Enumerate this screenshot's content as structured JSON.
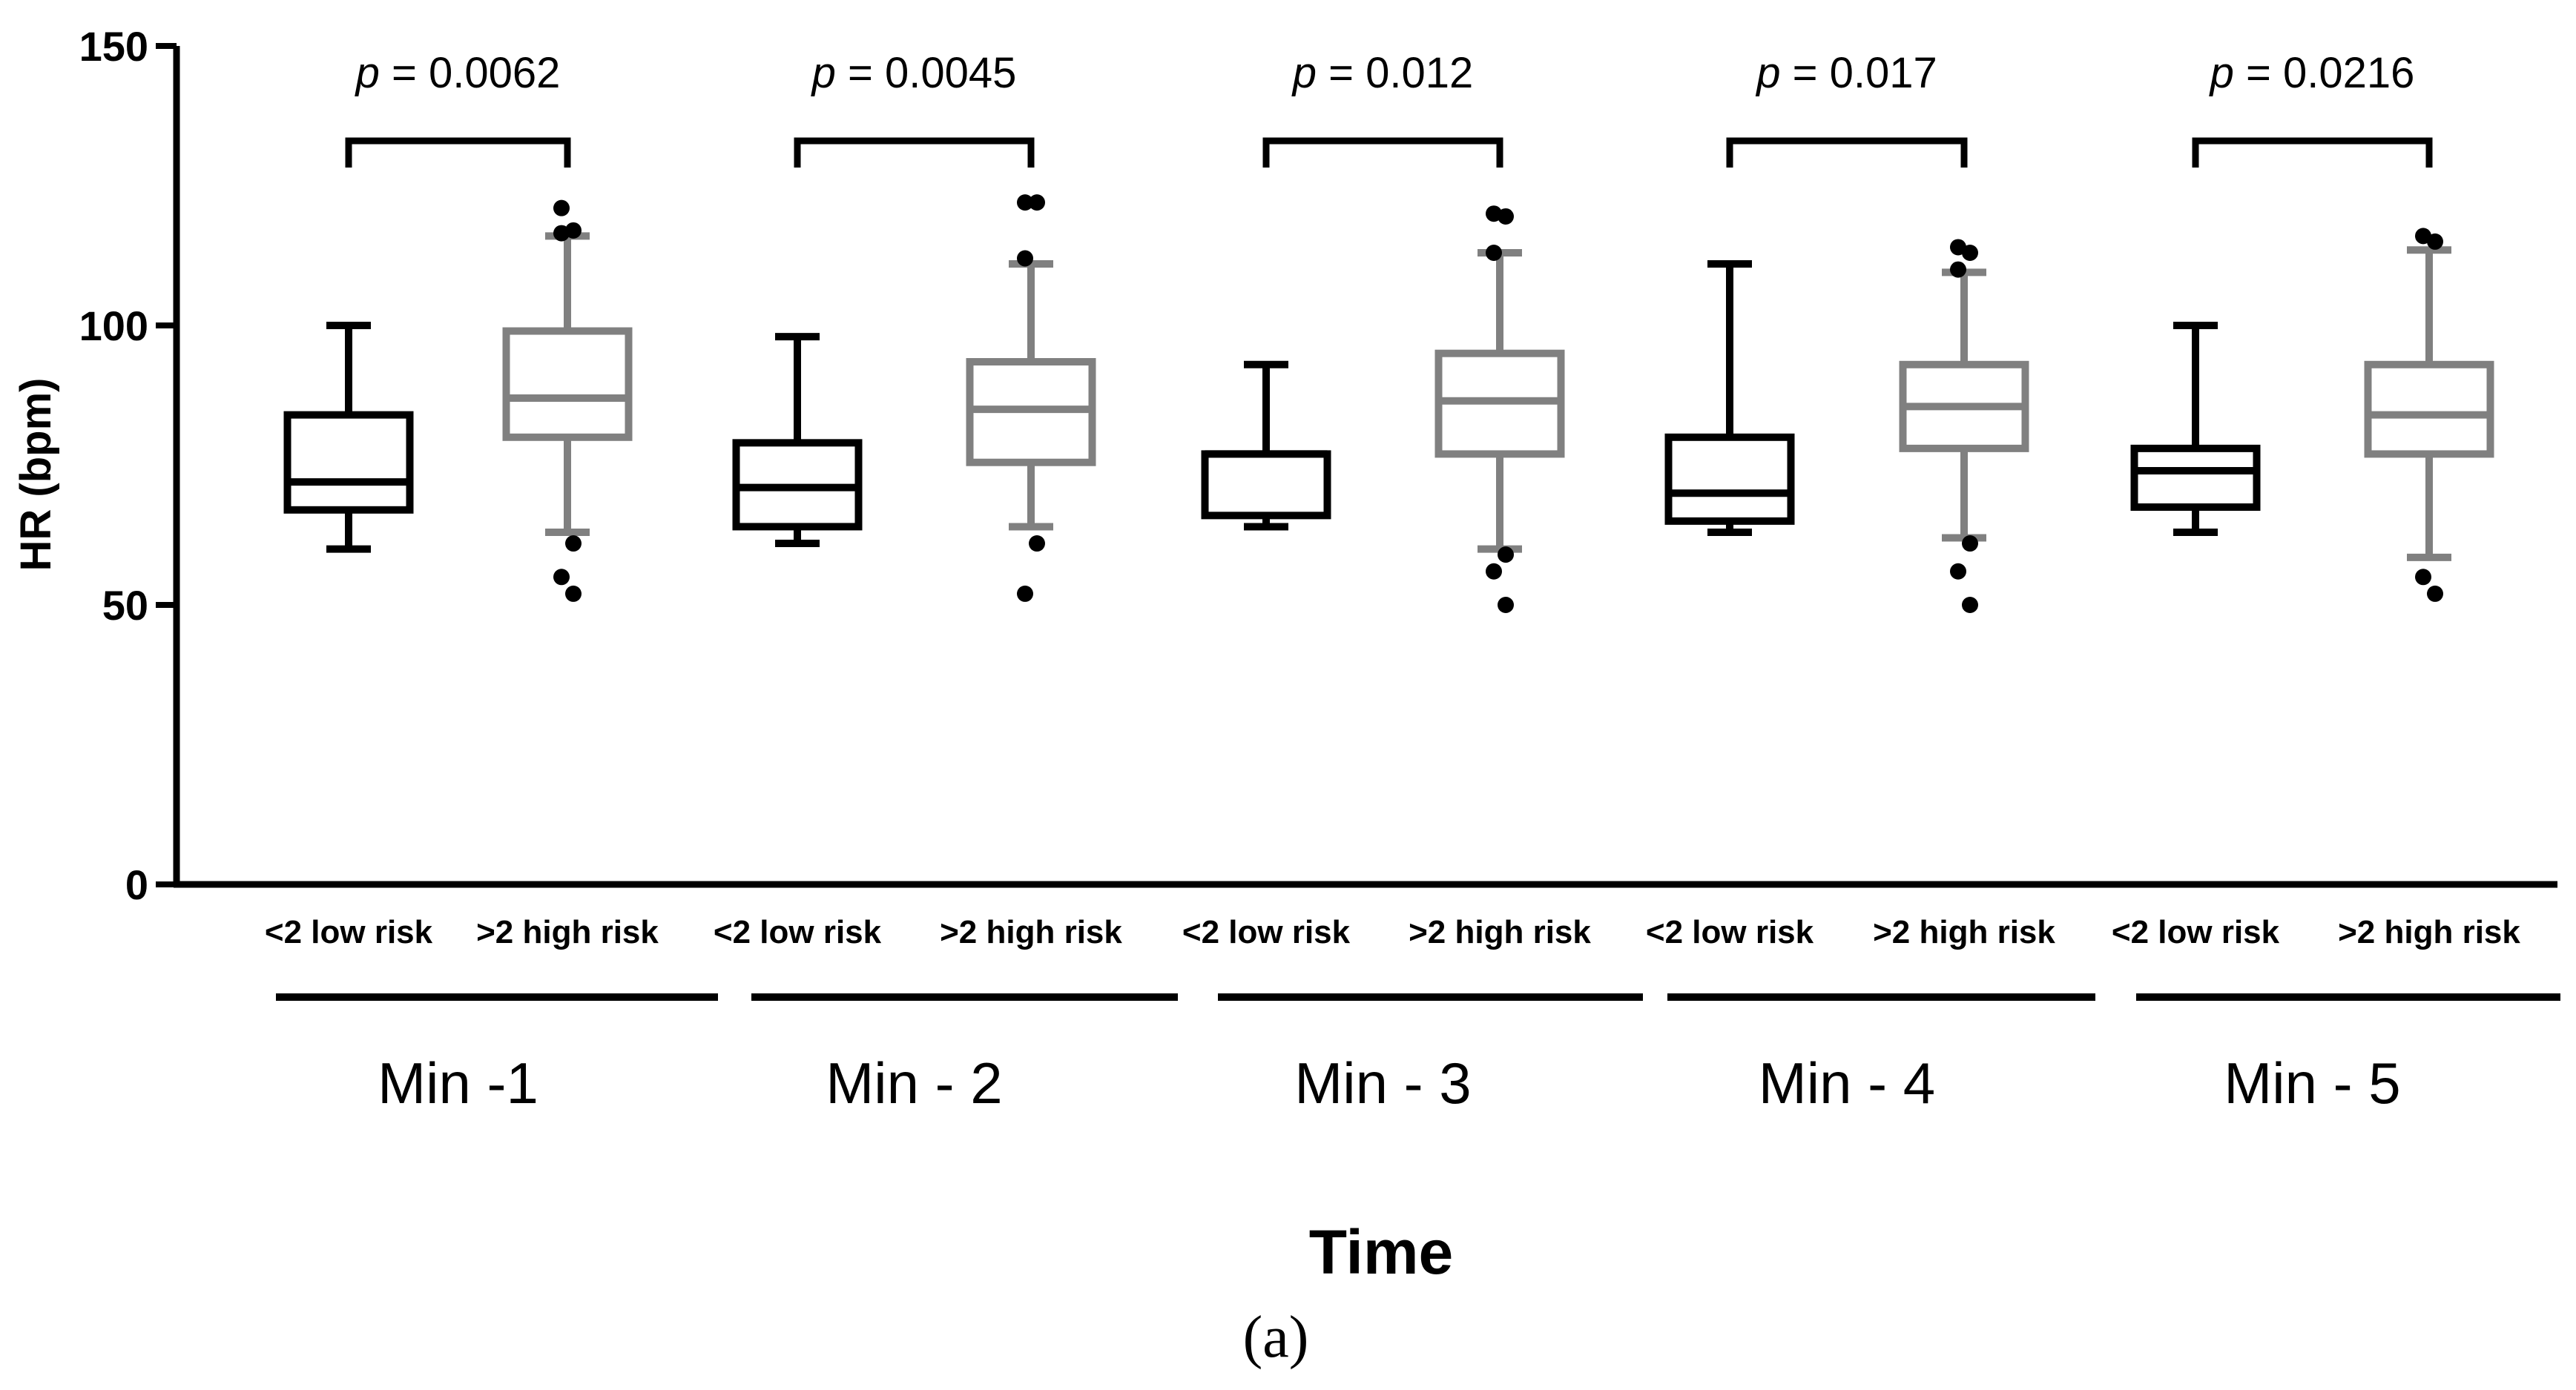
{
  "chart_data": {
    "type": "box",
    "title": "",
    "ylabel": "HR (bpm)",
    "xlabel": "Time",
    "panel_label": "(a)",
    "ylim": [
      0,
      150
    ],
    "yticks": [
      0,
      50,
      100,
      150
    ],
    "categories": [
      "<2 low risk",
      ">2 high risk"
    ],
    "series": [
      {
        "name": "<2 low risk",
        "color": "#000000"
      },
      {
        "name": ">2 high risk",
        "color": "#808080"
      }
    ],
    "groups": [
      {
        "label": "Min -1",
        "p_label": "p",
        "p_text": " = 0.0062",
        "boxes": [
          {
            "category": "<2 low risk",
            "whisker_low": 60,
            "q1": 67,
            "median": 72,
            "q3": 84,
            "whisker_high": 100,
            "outliers": []
          },
          {
            "category": ">2 high risk",
            "whisker_low": 63,
            "q1": 80,
            "median": 87,
            "q3": 99,
            "whisker_high": 116,
            "outliers": [
              121,
              117,
              116.5,
              61,
              55,
              52
            ]
          }
        ]
      },
      {
        "label": "Min - 2",
        "p_label": "p",
        "p_text": " = 0.0045",
        "boxes": [
          {
            "category": "<2 low risk",
            "whisker_low": 61,
            "q1": 64,
            "median": 71,
            "q3": 79,
            "whisker_high": 98,
            "outliers": []
          },
          {
            "category": ">2 high risk",
            "whisker_low": 64,
            "q1": 75.5,
            "median": 85,
            "q3": 93.5,
            "whisker_high": 111,
            "outliers": [
              122,
              122,
              112,
              61,
              52
            ]
          }
        ]
      },
      {
        "label": "Min - 3",
        "p_label": "p",
        "p_text": " = 0.012",
        "boxes": [
          {
            "category": "<2 low risk",
            "whisker_low": 64,
            "q1": 66,
            "median": 77,
            "q3": 77,
            "whisker_high": 93,
            "outliers": []
          },
          {
            "category": ">2 high risk",
            "whisker_low": 60,
            "q1": 77,
            "median": 86.5,
            "q3": 95,
            "whisker_high": 113,
            "outliers": [
              120,
              119.5,
              113,
              59,
              56,
              50
            ]
          }
        ]
      },
      {
        "label": "Min - 4",
        "p_label": "p",
        "p_text": " = 0.017",
        "boxes": [
          {
            "category": "<2 low risk",
            "whisker_low": 63,
            "q1": 65,
            "median": 70,
            "q3": 80,
            "whisker_high": 111,
            "outliers": []
          },
          {
            "category": ">2 high risk",
            "whisker_low": 62,
            "q1": 78,
            "median": 85.5,
            "q3": 93,
            "whisker_high": 109.5,
            "outliers": [
              114,
              113,
              110,
              61,
              56,
              50
            ]
          }
        ]
      },
      {
        "label": "Min - 5",
        "p_label": "p",
        "p_text": " = 0.0216",
        "boxes": [
          {
            "category": "<2 low risk",
            "whisker_low": 63,
            "q1": 67.5,
            "median": 74,
            "q3": 78,
            "whisker_high": 100,
            "outliers": []
          },
          {
            "category": ">2 high risk",
            "whisker_low": 58.5,
            "q1": 77,
            "median": 84,
            "q3": 93,
            "whisker_high": 113.5,
            "outliers": [
              116,
              115,
              55,
              52
            ]
          }
        ]
      }
    ]
  }
}
